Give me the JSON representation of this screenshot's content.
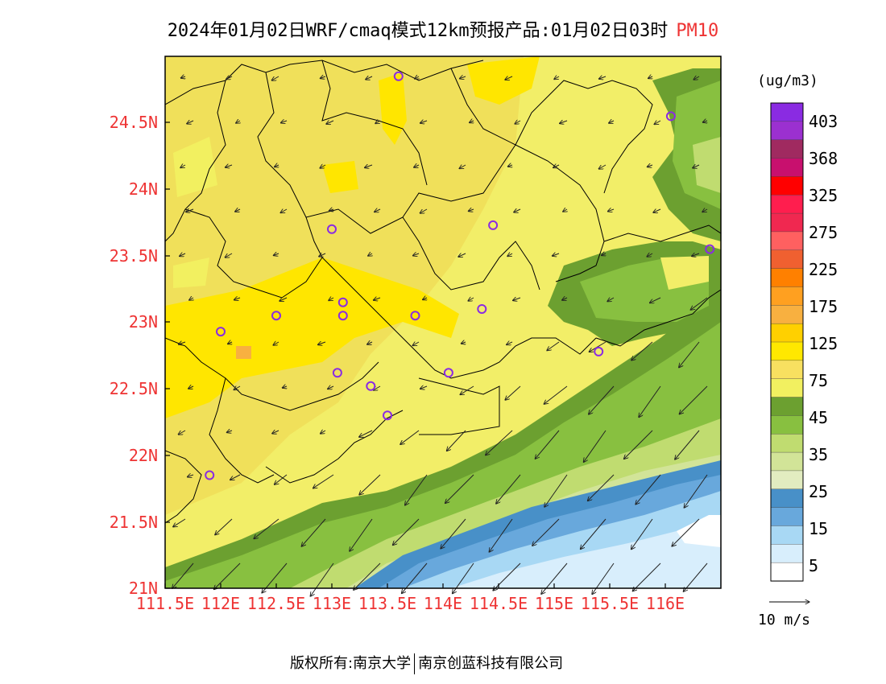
{
  "title": {
    "text": "2024年01月02日WRF/cmaq模式12km预报产品:01月02日03时",
    "variable": "PM10"
  },
  "axes": {
    "x_ticks": [
      "111.5E",
      "112E",
      "112.5E",
      "113E",
      "113.5E",
      "114E",
      "114.5E",
      "115E",
      "115.5E",
      "116E"
    ],
    "y_ticks": [
      "24.5N",
      "24N",
      "23.5N",
      "23N",
      "22.5N",
      "22N",
      "21.5N",
      "21N"
    ],
    "lon_range": [
      111.5,
      116.5
    ],
    "lat_range": [
      21.0,
      25.0
    ]
  },
  "legend": {
    "unit": "(ug/m3)",
    "labels": [
      "403",
      "368",
      "325",
      "275",
      "225",
      "175",
      "125",
      "75",
      "45",
      "35",
      "25",
      "15",
      "5"
    ],
    "colors": [
      "#8a2be2",
      "#9b30d0",
      "#a02a60",
      "#c8106e",
      "#ff0000",
      "#ff1e4e",
      "#f02850",
      "#ff6060",
      "#f06030",
      "#ff8000",
      "#ffa020",
      "#f8b040",
      "#ffd000",
      "#ffe800",
      "#f8e060",
      "#f2f060",
      "#6ca030",
      "#88c040",
      "#c0dc70",
      "#d2e498",
      "#e2ecc0",
      "#4890c8",
      "#68a8dc",
      "#a8d8f4",
      "#d8eefc",
      "#ffffff"
    ]
  },
  "wind_reference": {
    "label": "10 m/s"
  },
  "stations": [
    {
      "lon": 113.6,
      "lat": 24.85
    },
    {
      "lon": 116.05,
      "lat": 24.55
    },
    {
      "lon": 113.0,
      "lat": 23.7
    },
    {
      "lon": 114.45,
      "lat": 23.73
    },
    {
      "lon": 116.4,
      "lat": 23.55
    },
    {
      "lon": 113.1,
      "lat": 23.15
    },
    {
      "lon": 112.5,
      "lat": 23.05
    },
    {
      "lon": 113.1,
      "lat": 23.05
    },
    {
      "lon": 113.75,
      "lat": 23.05
    },
    {
      "lon": 114.35,
      "lat": 23.1
    },
    {
      "lon": 112.0,
      "lat": 22.93
    },
    {
      "lon": 115.4,
      "lat": 22.78
    },
    {
      "lon": 113.05,
      "lat": 22.62
    },
    {
      "lon": 113.35,
      "lat": 22.52
    },
    {
      "lon": 114.05,
      "lat": 22.62
    },
    {
      "lon": 113.5,
      "lat": 22.3
    },
    {
      "lon": 111.9,
      "lat": 21.85
    }
  ],
  "footer": {
    "copyright": "版权所有:南京大学",
    "company": "南京创蓝科技有限公司"
  }
}
